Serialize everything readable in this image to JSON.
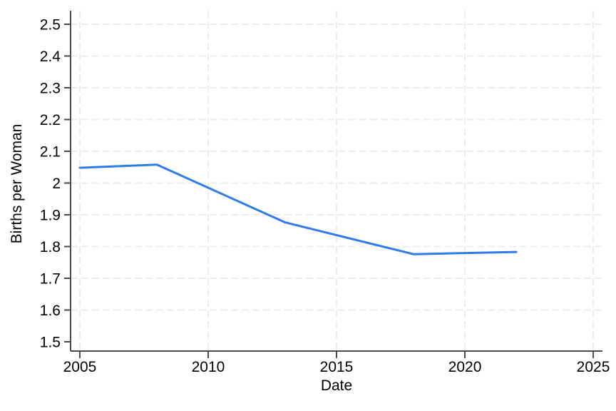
{
  "figure": {
    "background": "#ffffff",
    "title": ""
  },
  "chart_data": {
    "type": "line",
    "title": "",
    "xlabel": "Date",
    "ylabel": "Births per Woman",
    "legend_position": "none",
    "grid": "both-dashed",
    "series": [
      {
        "name": "Births per Woman",
        "x": [
          2005,
          2008,
          2013,
          2018,
          2022
        ],
        "y": [
          2.048,
          2.058,
          1.876,
          1.776,
          1.783
        ]
      }
    ],
    "xlim": [
      2004.64,
      2025.36
    ],
    "ylim": [
      1.4708,
      2.5427
    ],
    "x_ticks": {
      "values": [
        2005,
        2010,
        2015,
        2020,
        2025
      ],
      "labels": [
        "2005",
        "2010",
        "2015",
        "2020",
        "2025"
      ]
    },
    "y_ticks": {
      "values": [
        1.5,
        1.6,
        1.7,
        1.8,
        1.9,
        2.0,
        2.1,
        2.2,
        2.3,
        2.4,
        2.5
      ],
      "labels": [
        "1.5",
        "1.6",
        "1.7",
        "1.8",
        "1.9",
        "2",
        "2.1",
        "2.2",
        "2.3",
        "2.4",
        "2.5"
      ]
    },
    "x_grid_values": [
      2005,
      2010,
      2015,
      2020,
      2025
    ],
    "y_grid_values": [
      1.6,
      1.7,
      1.8,
      1.9,
      2.0,
      2.1,
      2.2,
      2.3,
      2.4,
      2.5
    ],
    "colors": {
      "line": "#2e7ceb",
      "grid": "#ececec",
      "axis": "#4a4a4a",
      "tick": "#4a4a4a",
      "text": "#000000",
      "background": "#ffffff"
    }
  }
}
